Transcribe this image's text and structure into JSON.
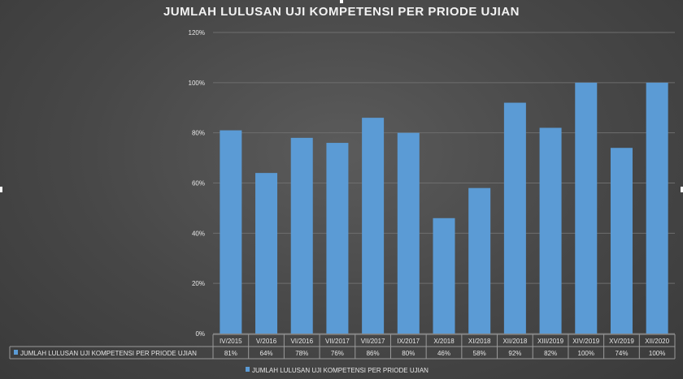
{
  "chart_data": {
    "type": "bar",
    "title": "JUMLAH LULUSAN UJI KOMPETENSI PER PRIODE UJIAN",
    "categories": [
      "IV/2015",
      "V/2016",
      "VI/2016",
      "VII/2017",
      "VII/2017",
      "IX/2017",
      "X/2018",
      "XI/2018",
      "XII/2018",
      "XIII/2019",
      "XIV/2019",
      "XV/2019",
      "XII/2020"
    ],
    "series": [
      {
        "name": "JUMLAH LULUSAN UJI KOMPETENSI PER PRIODE UJIAN",
        "values": [
          81,
          64,
          78,
          76,
          86,
          80,
          46,
          58,
          92,
          82,
          100,
          74,
          100
        ],
        "labels": [
          "81%",
          "64%",
          "78%",
          "76%",
          "86%",
          "80%",
          "46%",
          "58%",
          "92%",
          "82%",
          "100%",
          "74%",
          "100%"
        ]
      }
    ],
    "yticks": [
      "0%",
      "20%",
      "40%",
      "60%",
      "80%",
      "100%",
      "120%"
    ],
    "ylim": [
      0,
      120
    ],
    "grid": true,
    "legend_entry": "JUMLAH LULUSAN UJI KOMPETENSI PER PRIODE UJIAN",
    "legend_position": "bottom",
    "bar_color": "#5b9bd5",
    "data_table": true
  }
}
